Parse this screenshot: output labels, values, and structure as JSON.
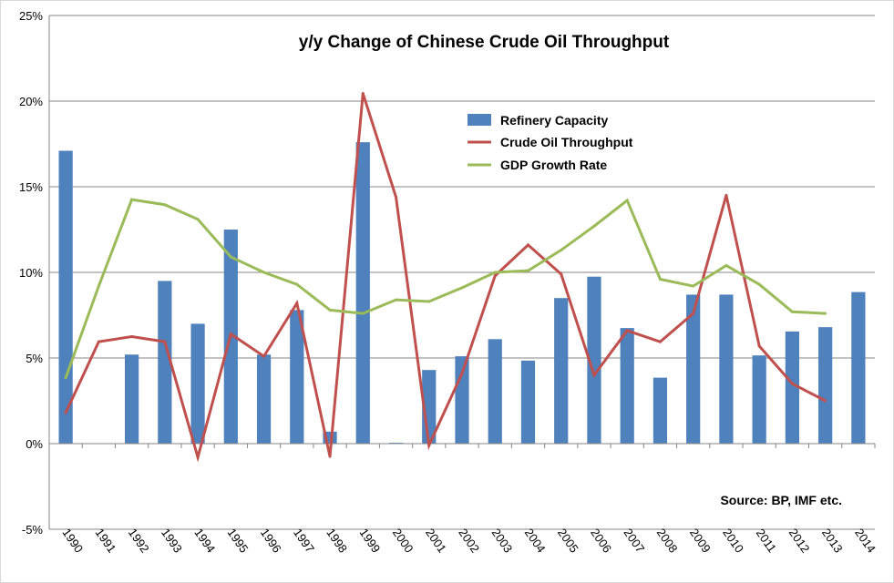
{
  "chart_data": {
    "type": "bar+line",
    "title": "y/y Change of Chinese Crude Oil Throughput",
    "categories": [
      "1990",
      "1991",
      "1992",
      "1993",
      "1994",
      "1995",
      "1996",
      "1997",
      "1998",
      "1999",
      "2000",
      "2001",
      "2002",
      "2003",
      "2004",
      "2005",
      "2006",
      "2007",
      "2008",
      "2009",
      "2010",
      "2011",
      "2012",
      "2013",
      "2014"
    ],
    "ylim": [
      -5,
      25
    ],
    "yticks": [
      -5,
      0,
      5,
      10,
      15,
      20,
      25
    ],
    "ytick_labels": [
      "-5%",
      "0%",
      "5%",
      "10%",
      "15%",
      "20%",
      "25%"
    ],
    "legend_position": "upper-middle",
    "series": [
      {
        "name": "Refinery Capacity",
        "kind": "bar",
        "color": "#4f81bd",
        "values": [
          17.1,
          null,
          5.2,
          9.5,
          7.0,
          12.5,
          5.2,
          7.8,
          0.7,
          17.6,
          0.05,
          4.3,
          5.1,
          6.1,
          4.85,
          8.5,
          9.75,
          6.75,
          3.85,
          8.7,
          8.7,
          5.15,
          6.55,
          6.8,
          8.85
        ]
      },
      {
        "name": "Crude Oil Throughput",
        "kind": "line",
        "color": "#c0504d",
        "values": [
          1.8,
          5.95,
          6.25,
          5.95,
          -0.8,
          6.4,
          5.1,
          8.2,
          -0.75,
          20.45,
          14.4,
          -0.1,
          4.1,
          9.8,
          11.6,
          9.9,
          4.0,
          6.6,
          5.95,
          7.6,
          14.5,
          5.7,
          3.5,
          2.5,
          null
        ]
      },
      {
        "name": "GDP Growth Rate",
        "kind": "line",
        "color": "#9bbb59",
        "values": [
          3.85,
          9.2,
          14.25,
          13.95,
          13.1,
          10.9,
          10.0,
          9.3,
          7.8,
          7.6,
          8.4,
          8.3,
          9.1,
          10.0,
          10.1,
          11.3,
          12.7,
          14.2,
          9.6,
          9.2,
          10.4,
          9.3,
          7.7,
          7.6,
          null
        ]
      }
    ],
    "annotation": "Source: BP, IMF etc."
  }
}
